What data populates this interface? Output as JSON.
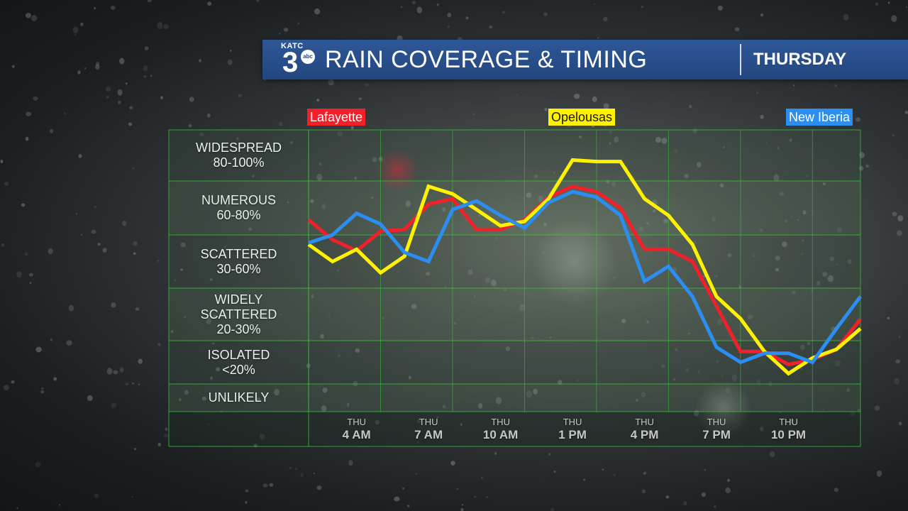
{
  "banner": {
    "logo_text": "KATC",
    "logo_number": "3",
    "logo_badge": "abc",
    "title": "RAIN COVERAGE & TIMING",
    "day": "THURSDAY"
  },
  "colors": {
    "banner": "#22467f",
    "lafayette": "#f2202a",
    "opelousas": "#fff200",
    "new_iberia": "#2b8ef0",
    "grid": "#33cc33"
  },
  "chart_data": {
    "type": "line",
    "title": "RAIN COVERAGE & TIMING",
    "subtitle": "THURSDAY",
    "xlabel": "",
    "ylabel": "",
    "y_categories": [
      {
        "label_lines": [
          "WIDESPREAD",
          "80-100%"
        ]
      },
      {
        "label_lines": [
          "NUMEROUS",
          "60-80%"
        ]
      },
      {
        "label_lines": [
          "SCATTERED",
          "30-60%"
        ]
      },
      {
        "label_lines": [
          "WIDELY",
          "SCATTERED",
          "20-30%"
        ]
      },
      {
        "label_lines": [
          "ISOLATED",
          "<20%"
        ]
      },
      {
        "label_lines": [
          "UNLIKELY"
        ]
      }
    ],
    "ylim": [
      0,
      6
    ],
    "x_ticks": [
      {
        "day": "THU",
        "time": "4 AM",
        "hour": 4
      },
      {
        "day": "THU",
        "time": "7 AM",
        "hour": 7
      },
      {
        "day": "THU",
        "time": "10 AM",
        "hour": 10
      },
      {
        "day": "THU",
        "time": "1 PM",
        "hour": 13
      },
      {
        "day": "THU",
        "time": "4 PM",
        "hour": 16
      },
      {
        "day": "THU",
        "time": "7 PM",
        "hour": 19
      },
      {
        "day": "THU",
        "time": "10 PM",
        "hour": 22
      }
    ],
    "xlim": [
      2,
      25
    ],
    "grid": true,
    "series": [
      {
        "name": "Lafayette",
        "color": "#f2202a",
        "points": [
          [
            2.0,
            4.28
          ],
          [
            3.0,
            3.91
          ],
          [
            4.0,
            3.7
          ],
          [
            5.0,
            4.07
          ],
          [
            6.0,
            4.1
          ],
          [
            7.0,
            4.57
          ],
          [
            8.0,
            4.67
          ],
          [
            9.0,
            4.1
          ],
          [
            10.0,
            4.1
          ],
          [
            11.0,
            4.28
          ],
          [
            12.0,
            4.7
          ],
          [
            13.0,
            4.9
          ],
          [
            14.0,
            4.8
          ],
          [
            15.0,
            4.5
          ],
          [
            16.0,
            3.73
          ],
          [
            17.0,
            3.73
          ],
          [
            18.0,
            3.5
          ],
          [
            19.0,
            2.66
          ],
          [
            20.0,
            1.75
          ],
          [
            21.0,
            1.75
          ],
          [
            22.0,
            1.45
          ],
          [
            23.0,
            1.56
          ],
          [
            24.0,
            1.8
          ],
          [
            25.0,
            2.41
          ]
        ]
      },
      {
        "name": "Opelousas",
        "color": "#fff200",
        "points": [
          [
            2.0,
            3.82
          ],
          [
            3.0,
            3.5
          ],
          [
            4.0,
            3.73
          ],
          [
            5.0,
            3.29
          ],
          [
            6.0,
            3.6
          ],
          [
            7.0,
            4.9
          ],
          [
            8.0,
            4.76
          ],
          [
            9.0,
            4.47
          ],
          [
            10.0,
            4.17
          ],
          [
            11.0,
            4.25
          ],
          [
            12.0,
            4.67
          ],
          [
            13.0,
            5.41
          ],
          [
            14.0,
            5.38
          ],
          [
            15.0,
            5.38
          ],
          [
            16.0,
            4.67
          ],
          [
            17.0,
            4.36
          ],
          [
            18.0,
            3.82
          ],
          [
            19.0,
            2.84
          ],
          [
            20.0,
            2.42
          ],
          [
            21.0,
            1.75
          ],
          [
            22.0,
            1.24
          ],
          [
            23.0,
            1.6
          ],
          [
            24.0,
            1.8
          ],
          [
            25.0,
            2.23
          ]
        ]
      },
      {
        "name": "New Iberia",
        "color": "#2b8ef0",
        "points": [
          [
            2.0,
            3.85
          ],
          [
            3.0,
            4.0
          ],
          [
            4.0,
            4.4
          ],
          [
            5.0,
            4.2
          ],
          [
            6.0,
            3.67
          ],
          [
            7.0,
            3.5
          ],
          [
            8.0,
            4.47
          ],
          [
            9.0,
            4.63
          ],
          [
            10.0,
            4.36
          ],
          [
            11.0,
            4.13
          ],
          [
            12.0,
            4.6
          ],
          [
            13.0,
            4.8
          ],
          [
            14.0,
            4.7
          ],
          [
            15.0,
            4.36
          ],
          [
            16.0,
            3.13
          ],
          [
            17.0,
            3.41
          ],
          [
            18.0,
            2.84
          ],
          [
            19.0,
            1.85
          ],
          [
            20.0,
            1.5
          ],
          [
            21.0,
            1.71
          ],
          [
            22.0,
            1.71
          ],
          [
            23.0,
            1.5
          ],
          [
            24.0,
            2.23
          ],
          [
            25.0,
            2.84
          ]
        ]
      }
    ]
  }
}
